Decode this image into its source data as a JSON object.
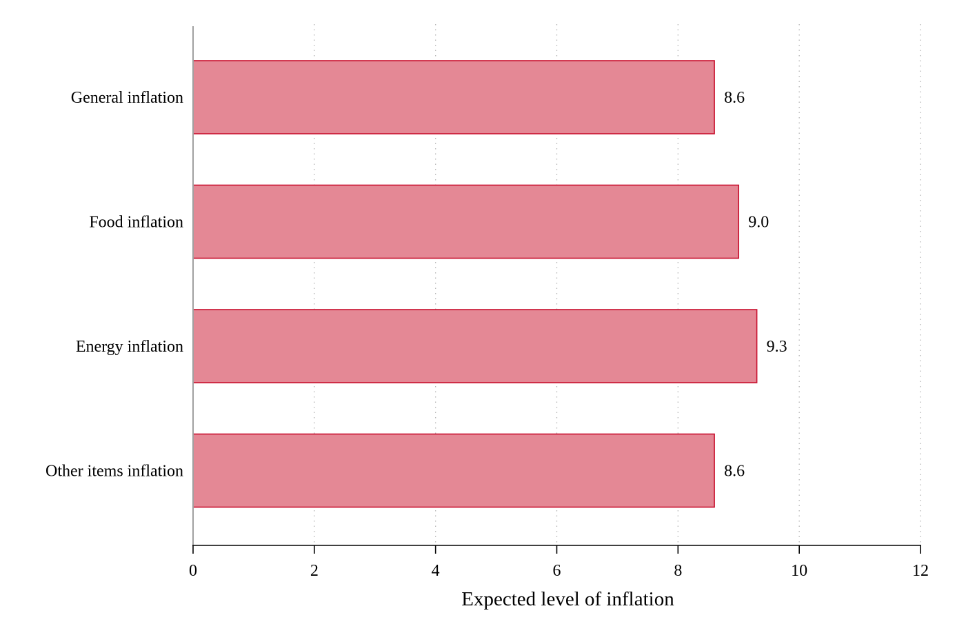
{
  "chart_data": {
    "type": "bar",
    "orientation": "horizontal",
    "categories": [
      "General inflation",
      "Food inflation",
      "Energy inflation",
      "Other items inflation"
    ],
    "values": [
      8.6,
      9.0,
      9.3,
      8.6
    ],
    "value_labels": [
      "8.6",
      "9.0",
      "9.3",
      "8.6"
    ],
    "xlabel": "Expected level of inflation",
    "xlim": [
      0,
      12
    ],
    "xticks": [
      0,
      2,
      4,
      6,
      8,
      10,
      12
    ],
    "grid": "vertical dotted",
    "colors": {
      "bar_fill": "#e48895",
      "bar_edge": "#c8102e"
    }
  }
}
